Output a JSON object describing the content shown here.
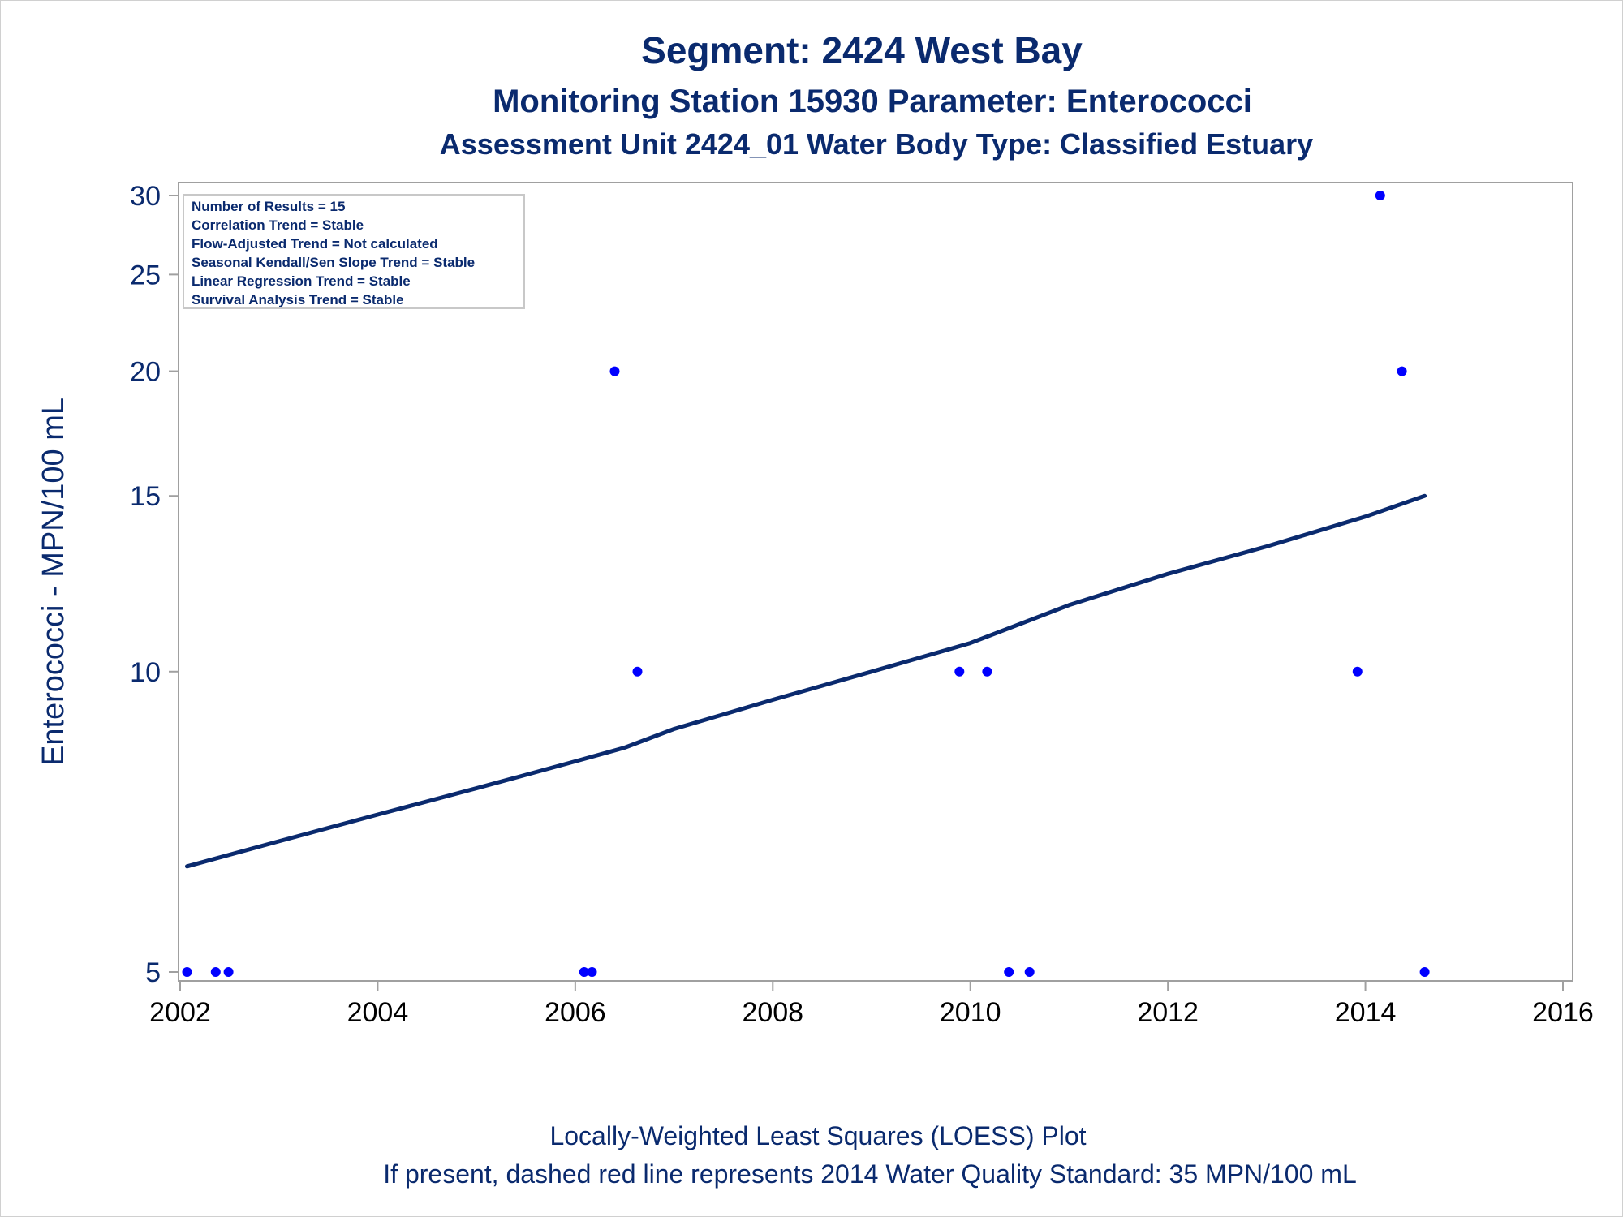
{
  "titles": {
    "line1": "Segment: 2424  West Bay",
    "line2": "Monitoring Station 15930 Parameter: Enterococci",
    "line3": "Assessment Unit 2424_01   Water Body Type: Classified Estuary"
  },
  "stats_box": [
    "Number of Results = 15",
    "Correlation Trend = Stable",
    "Flow-Adjusted Trend = Not calculated",
    "Seasonal Kendall/Sen Slope Trend = Stable",
    "Linear Regression Trend = Stable",
    "Survival Analysis Trend = Stable"
  ],
  "footer": {
    "line1": "Locally-Weighted Least Squares (LOESS) Plot",
    "line2": "If present, dashed red line represents 2014 Water Quality Standard: 35 MPN/100 mL"
  },
  "colors": {
    "title": "#0a2a6e",
    "points": "#0000ff",
    "loess": "#0a2a6e",
    "axis": "#a0a0a0"
  },
  "chart_data": {
    "type": "scatter",
    "ylabel": "Enterococci - MPN/100 mL",
    "xlabel": "",
    "y_scale": "log",
    "xlim": [
      2002,
      2016
    ],
    "ylim": [
      4.83,
      31.2
    ],
    "x_ticks": [
      2002,
      2004,
      2006,
      2008,
      2010,
      2012,
      2014,
      2016
    ],
    "y_ticks": [
      5,
      10,
      15,
      20,
      25,
      30
    ],
    "grid": false,
    "legend": "top-left inset",
    "series": [
      {
        "kind": "points",
        "x": [
          2002.07,
          2002.36,
          2002.49,
          2006.09,
          2006.17,
          2006.4,
          2006.63,
          2009.89,
          2010.17,
          2010.39,
          2010.6,
          2013.92,
          2014.15,
          2014.37,
          2014.6
        ],
        "y": [
          5,
          5,
          5,
          5,
          5,
          20,
          10,
          10,
          10,
          5,
          5,
          10,
          30,
          20,
          5
        ]
      },
      {
        "kind": "loess",
        "x": [
          2002.07,
          2003,
          2004,
          2005,
          2006,
          2006.5,
          2007,
          2008,
          2009,
          2010,
          2011,
          2012,
          2013,
          2014,
          2014.6
        ],
        "y": [
          6.38,
          6.76,
          7.19,
          7.64,
          8.13,
          8.39,
          8.76,
          9.37,
          10.0,
          10.68,
          11.66,
          12.53,
          13.35,
          14.3,
          15.0
        ]
      }
    ]
  }
}
